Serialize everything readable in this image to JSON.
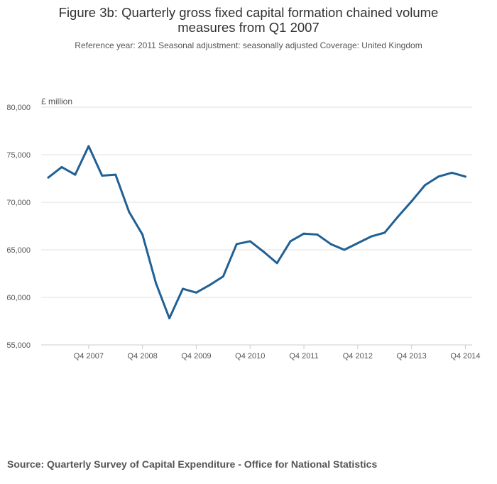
{
  "title": "Figure 3b: Quarterly gross fixed capital formation chained volume measures from Q1 2007",
  "subtitle": "Reference year: 2011 Seasonal adjustment: seasonally adjusted Coverage: United Kingdom",
  "source": "Source: Quarterly Survey of Capital Expenditure - Office for National Statistics",
  "colors": {
    "series": "#206095",
    "grid": "#e2e2e2",
    "axis_text": "#555555"
  },
  "chart_data": {
    "type": "line",
    "title": "Figure 3b: Quarterly gross fixed capital formation chained volume measures from Q1 2007",
    "xlabel": "",
    "ylabel": "£ million",
    "ylim": [
      55000,
      80000
    ],
    "yticks": [
      55000,
      60000,
      65000,
      70000,
      75000,
      80000
    ],
    "ytick_labels": [
      "55,000",
      "60,000",
      "65,000",
      "70,000",
      "75,000",
      "80,000"
    ],
    "grid": true,
    "xticks": [
      {
        "index": 3,
        "label": "Q4 2007"
      },
      {
        "index": 7,
        "label": "Q4 2008"
      },
      {
        "index": 11,
        "label": "Q4 2009"
      },
      {
        "index": 15,
        "label": "Q4 2010"
      },
      {
        "index": 19,
        "label": "Q4 2011"
      },
      {
        "index": 23,
        "label": "Q4 2012"
      },
      {
        "index": 27,
        "label": "Q4 2013"
      },
      {
        "index": 31,
        "label": "Q4 2014"
      }
    ],
    "categories": [
      "Q1 2007",
      "Q2 2007",
      "Q3 2007",
      "Q4 2007",
      "Q1 2008",
      "Q2 2008",
      "Q3 2008",
      "Q4 2008",
      "Q1 2009",
      "Q2 2009",
      "Q3 2009",
      "Q4 2009",
      "Q1 2010",
      "Q2 2010",
      "Q3 2010",
      "Q4 2010",
      "Q1 2011",
      "Q2 2011",
      "Q3 2011",
      "Q4 2011",
      "Q1 2012",
      "Q2 2012",
      "Q3 2012",
      "Q4 2012",
      "Q1 2013",
      "Q2 2013",
      "Q3 2013",
      "Q4 2013",
      "Q1 2014",
      "Q2 2014",
      "Q3 2014",
      "Q4 2014"
    ],
    "series": [
      {
        "name": "Gross fixed capital formation",
        "values": [
          72600,
          73700,
          72900,
          75900,
          72800,
          72900,
          69000,
          66600,
          61500,
          57800,
          60900,
          60500,
          61300,
          62200,
          65600,
          65900,
          64800,
          63600,
          65900,
          66700,
          66600,
          65600,
          65000,
          65700,
          66400,
          66800,
          68500,
          70100,
          71800,
          72700,
          73100,
          72700
        ]
      }
    ]
  }
}
